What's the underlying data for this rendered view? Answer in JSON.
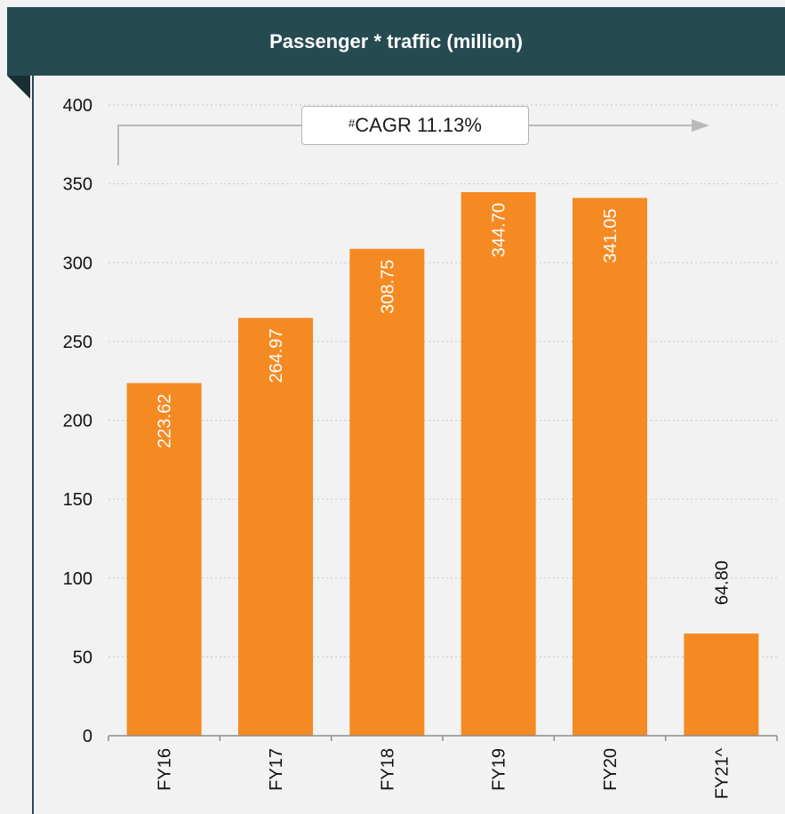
{
  "header": {
    "title": "Passenger * traffic (million)"
  },
  "annotation": {
    "sup": "#",
    "text": "CAGR 11.13%"
  },
  "colors": {
    "bar": "#f58a23",
    "header": "#264a52",
    "grid": "#c8c8c8",
    "arrow": "#b9b9b9"
  },
  "chart_data": {
    "type": "bar",
    "title": "Passenger * traffic (million)",
    "categories": [
      "FY16",
      "FY17",
      "FY18",
      "FY19",
      "FY20",
      "FY21^"
    ],
    "values": [
      223.62,
      264.97,
      308.75,
      344.7,
      341.05,
      64.8
    ],
    "value_labels": [
      "223.62",
      "264.97",
      "308.75",
      "344.70",
      "341.05",
      "64.80"
    ],
    "ylim": [
      0,
      400
    ],
    "yticks": [
      0,
      50,
      100,
      150,
      200,
      250,
      300,
      350,
      400
    ],
    "grid": true,
    "xlabel": "",
    "ylabel": ""
  }
}
